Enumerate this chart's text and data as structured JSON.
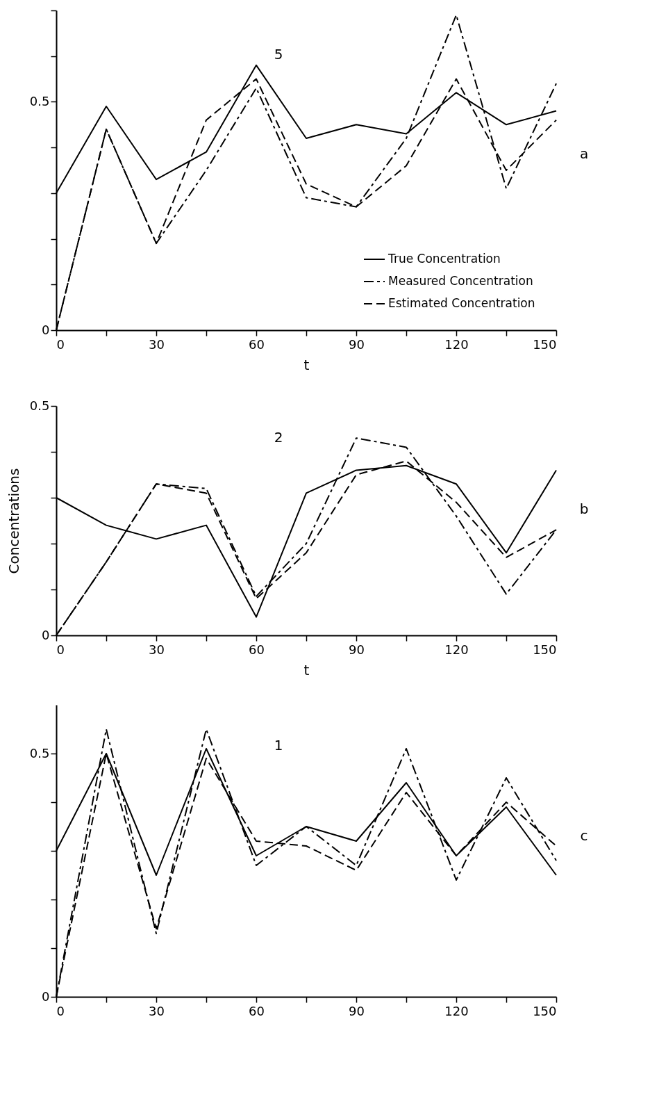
{
  "chart_data": [
    {
      "type": "line",
      "xlabel": "t",
      "annotations": [
        "5",
        "a"
      ],
      "legend": "bottom right",
      "x": [
        0,
        15,
        30,
        45,
        60,
        75,
        90,
        105,
        120,
        135,
        150
      ],
      "xlim": [
        0,
        150
      ],
      "xticks": [
        0,
        {
          "value": 15,
          "label": null
        },
        30,
        {
          "value": 45,
          "label": null
        },
        60,
        {
          "value": 75,
          "label": null
        },
        90,
        {
          "value": 105,
          "label": null
        },
        120,
        {
          "value": 135,
          "label": null
        },
        150
      ],
      "ylim": [
        0,
        0.7
      ],
      "yticks": [
        {
          "value": 0,
          "label": "0"
        },
        {
          "value": 0.1,
          "label": null
        },
        {
          "value": 0.2,
          "label": null
        },
        {
          "value": 0.3,
          "label": null
        },
        {
          "value": 0.4,
          "label": null
        },
        {
          "value": 0.5,
          "label": "0.5"
        },
        {
          "value": 0.6,
          "label": null
        },
        {
          "value": 0.7,
          "label": null
        }
      ],
      "series": [
        {
          "name": "True Concentration",
          "color": "#000000",
          "line_style": "solid",
          "values": [
            0.3,
            0.49,
            0.33,
            0.39,
            0.58,
            0.42,
            0.45,
            0.43,
            0.52,
            0.45,
            0.48
          ]
        },
        {
          "name": "Measured Concentration",
          "color": "#000000",
          "line_style": "dashed",
          "values": [
            0,
            0.44,
            0.19,
            0.35,
            0.53,
            0.29,
            0.27,
            0.42,
            0.69,
            0.31,
            0.54
          ]
        },
        {
          "name": "Estimated Concentration",
          "color": "#000000",
          "line_style": "dashed",
          "values": [
            0,
            0.44,
            0.19,
            0.46,
            0.55,
            0.32,
            0.27,
            0.36,
            0.55,
            0.35,
            0.46
          ]
        }
      ]
    },
    {
      "type": "line",
      "xlabel": "t",
      "ylabel": "Concentrations",
      "annotations": [
        "2",
        "b"
      ],
      "x": [
        0,
        15,
        30,
        45,
        60,
        75,
        90,
        105,
        120,
        135,
        150
      ],
      "xlim": [
        0,
        150
      ],
      "xticks": [
        0,
        {
          "value": 15,
          "label": null
        },
        30,
        {
          "value": 45,
          "label": null
        },
        60,
        {
          "value": 75,
          "label": null
        },
        90,
        {
          "value": 105,
          "label": null
        },
        120,
        {
          "value": 135,
          "label": null
        },
        150
      ],
      "ylim": [
        0,
        0.5
      ],
      "yticks": [
        {
          "value": 0,
          "label": "0"
        },
        {
          "value": 0.1,
          "label": null
        },
        {
          "value": 0.2,
          "label": null
        },
        {
          "value": 0.3,
          "label": null
        },
        {
          "value": 0.4,
          "label": null
        },
        {
          "value": 0.5,
          "label": "0.5"
        }
      ],
      "series": [
        {
          "color": "#000000",
          "line_style": "solid",
          "values": [
            0.3,
            0.24,
            0.21,
            0.24,
            0.04,
            0.31,
            0.36,
            0.37,
            0.33,
            0.18,
            0.36
          ]
        },
        {
          "color": "#000000",
          "line_style": "dashed",
          "values": [
            0,
            0.16,
            0.33,
            0.32,
            0.085,
            0.2,
            0.43,
            0.41,
            0.26,
            0.09,
            0.23
          ]
        },
        {
          "color": "#000000",
          "line_style": "dashed",
          "values": [
            0,
            0.16,
            0.33,
            0.31,
            0.08,
            0.18,
            0.35,
            0.38,
            0.29,
            0.17,
            0.23
          ]
        }
      ]
    },
    {
      "type": "line",
      "annotations": [
        "1",
        "c"
      ],
      "x": [
        0,
        15,
        30,
        45,
        60,
        75,
        90,
        105,
        120,
        135,
        150
      ],
      "xlim": [
        0,
        150
      ],
      "xticks": [
        0,
        {
          "value": 15,
          "label": null
        },
        30,
        {
          "value": 45,
          "label": null
        },
        60,
        {
          "value": 75,
          "label": null
        },
        90,
        {
          "value": 105,
          "label": null
        },
        120,
        {
          "value": 135,
          "label": null
        },
        150
      ],
      "ylim": [
        0,
        0.6
      ],
      "yticks": [
        {
          "value": 0,
          "label": "0"
        },
        {
          "value": 0.1,
          "label": null
        },
        {
          "value": 0.2,
          "label": null
        },
        {
          "value": 0.3,
          "label": null
        },
        {
          "value": 0.4,
          "label": null
        },
        {
          "value": 0.5,
          "label": "0.5"
        }
      ],
      "series": [
        {
          "color": "#000000",
          "line_style": "solid",
          "values": [
            0.3,
            0.5,
            0.25,
            0.51,
            0.29,
            0.35,
            0.32,
            0.44,
            0.29,
            0.39,
            0.25
          ]
        },
        {
          "color": "#000000",
          "line_style": "dashed",
          "values": [
            0,
            0.55,
            0.13,
            0.55,
            0.27,
            0.35,
            0.27,
            0.51,
            0.24,
            0.45,
            0.28
          ]
        },
        {
          "color": "#000000",
          "line_style": "dashed",
          "values": [
            0,
            0.5,
            0.14,
            0.49,
            0.32,
            0.31,
            0.26,
            0.42,
            0.29,
            0.4,
            0.31
          ]
        }
      ]
    }
  ]
}
